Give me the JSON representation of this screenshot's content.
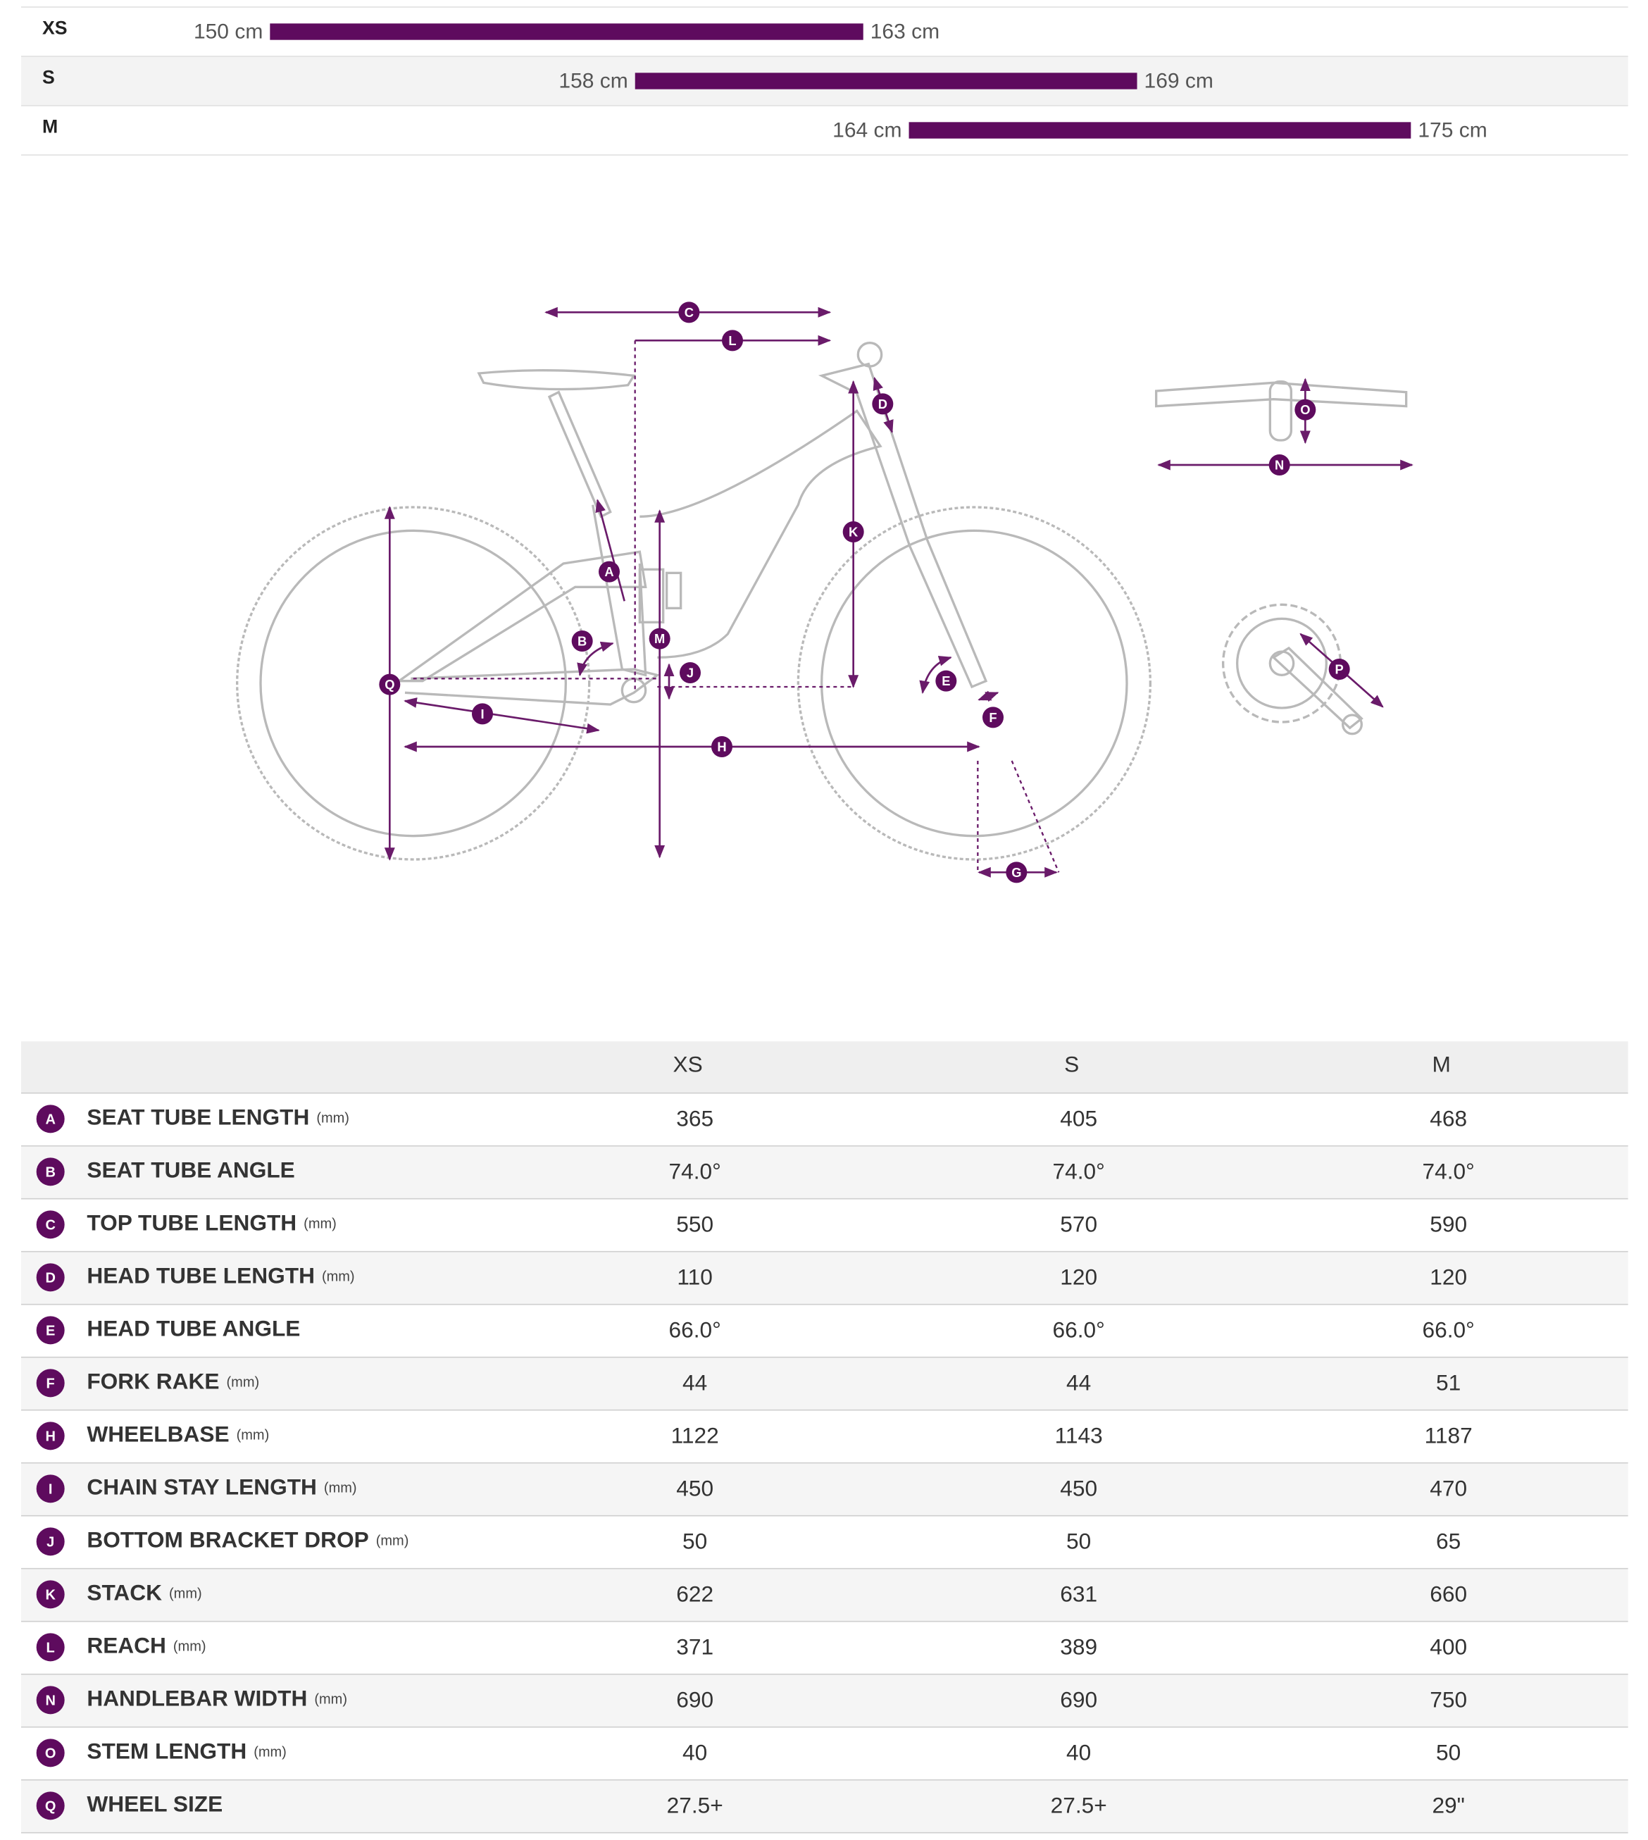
{
  "size_chart": {
    "rows": [
      {
        "size": "XS",
        "min": 150,
        "max": 163,
        "min_label": "150 cm",
        "max_label": "163 cm"
      },
      {
        "size": "S",
        "min": 158,
        "max": 169,
        "min_label": "158 cm",
        "max_label": "169 cm"
      },
      {
        "size": "M",
        "min": 164,
        "max": 175,
        "min_label": "164 cm",
        "max_label": "175 cm"
      }
    ]
  },
  "diagram": {
    "labels": [
      "C",
      "L",
      "D",
      "A",
      "K",
      "B",
      "M",
      "J",
      "E",
      "F",
      "Q",
      "I",
      "H",
      "G",
      "O",
      "N",
      "P"
    ]
  },
  "table": {
    "columns": [
      "XS",
      "S",
      "M"
    ],
    "rows": [
      {
        "letter": "A",
        "name": "SEAT TUBE LENGTH",
        "unit": "(mm)",
        "values": [
          "365",
          "405",
          "468"
        ]
      },
      {
        "letter": "B",
        "name": "SEAT TUBE ANGLE",
        "values": [
          "74.0°",
          "74.0°",
          "74.0°"
        ]
      },
      {
        "letter": "C",
        "name": "TOP TUBE LENGTH",
        "unit": "(mm)",
        "values": [
          "550",
          "570",
          "590"
        ]
      },
      {
        "letter": "D",
        "name": "HEAD TUBE LENGTH",
        "unit": "(mm)",
        "values": [
          "110",
          "120",
          "120"
        ]
      },
      {
        "letter": "E",
        "name": "HEAD TUBE ANGLE",
        "values": [
          "66.0°",
          "66.0°",
          "66.0°"
        ]
      },
      {
        "letter": "F",
        "name": "FORK RAKE",
        "unit": "(mm)",
        "values": [
          "44",
          "44",
          "51"
        ]
      },
      {
        "letter": "H",
        "name": "WHEELBASE",
        "unit": "(mm)",
        "values": [
          "1122",
          "1143",
          "1187"
        ]
      },
      {
        "letter": "I",
        "name": "CHAIN STAY LENGTH",
        "unit": "(mm)",
        "values": [
          "450",
          "450",
          "470"
        ]
      },
      {
        "letter": "J",
        "name": "BOTTOM BRACKET DROP",
        "unit": "(mm)",
        "values": [
          "50",
          "50",
          "65"
        ]
      },
      {
        "letter": "K",
        "name": "STACK",
        "unit": "(mm)",
        "values": [
          "622",
          "631",
          "660"
        ]
      },
      {
        "letter": "L",
        "name": "REACH",
        "unit": "(mm)",
        "values": [
          "371",
          "389",
          "400"
        ]
      },
      {
        "letter": "N",
        "name": "HANDLEBAR WIDTH",
        "unit": "(mm)",
        "values": [
          "690",
          "690",
          "750"
        ]
      },
      {
        "letter": "O",
        "name": "STEM LENGTH",
        "unit": "(mm)",
        "values": [
          "40",
          "40",
          "50"
        ]
      },
      {
        "letter": "Q",
        "name": "WHEEL SIZE",
        "values": [
          "27.5+",
          "27.5+",
          "29\""
        ]
      }
    ]
  }
}
